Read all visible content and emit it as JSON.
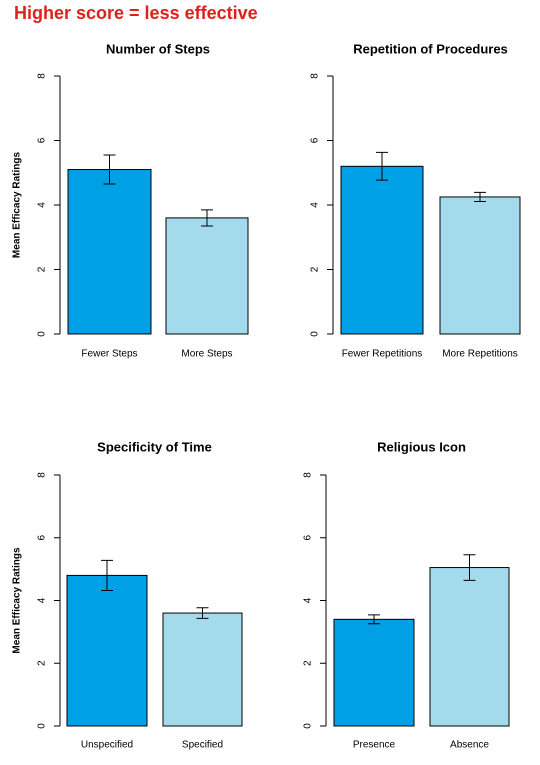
{
  "header": {
    "title": "Higher score = less effective"
  },
  "chart_data": [
    {
      "type": "bar",
      "title": "Number of Steps",
      "ylabel": "Mean Efficacy Ratings",
      "categories": [
        "Fewer Steps",
        "More Steps"
      ],
      "values": [
        5.1,
        3.6
      ],
      "errors": [
        0.45,
        0.25
      ],
      "colors": [
        "#00a0e6",
        "#a3dbec"
      ],
      "ylim": [
        0,
        8
      ],
      "yticks": [
        0,
        2,
        4,
        6,
        8
      ]
    },
    {
      "type": "bar",
      "title": "Repetition of Procedures",
      "categories": [
        "Fewer Repetitions",
        "More Repetitions"
      ],
      "values": [
        5.2,
        4.25
      ],
      "errors": [
        0.43,
        0.14
      ],
      "colors": [
        "#00a0e6",
        "#a3dbec"
      ],
      "ylim": [
        0,
        8
      ],
      "yticks": [
        0,
        2,
        4,
        6,
        8
      ]
    },
    {
      "type": "bar",
      "title": "Specificity of Time",
      "ylabel": "Mean Efficacy Ratings",
      "categories": [
        "Unspecified",
        "Specified"
      ],
      "values": [
        4.8,
        3.6
      ],
      "errors": [
        0.48,
        0.17
      ],
      "colors": [
        "#00a0e6",
        "#a3dbec"
      ],
      "ylim": [
        0,
        8
      ],
      "yticks": [
        0,
        2,
        4,
        6,
        8
      ]
    },
    {
      "type": "bar",
      "title": "Religious Icon",
      "categories": [
        "Presence",
        "Absence"
      ],
      "values": [
        3.4,
        5.05
      ],
      "errors": [
        0.14,
        0.41
      ],
      "colors": [
        "#00a0e6",
        "#a3dbec"
      ],
      "ylim": [
        0,
        8
      ],
      "yticks": [
        0,
        2,
        4,
        6,
        8
      ]
    }
  ]
}
